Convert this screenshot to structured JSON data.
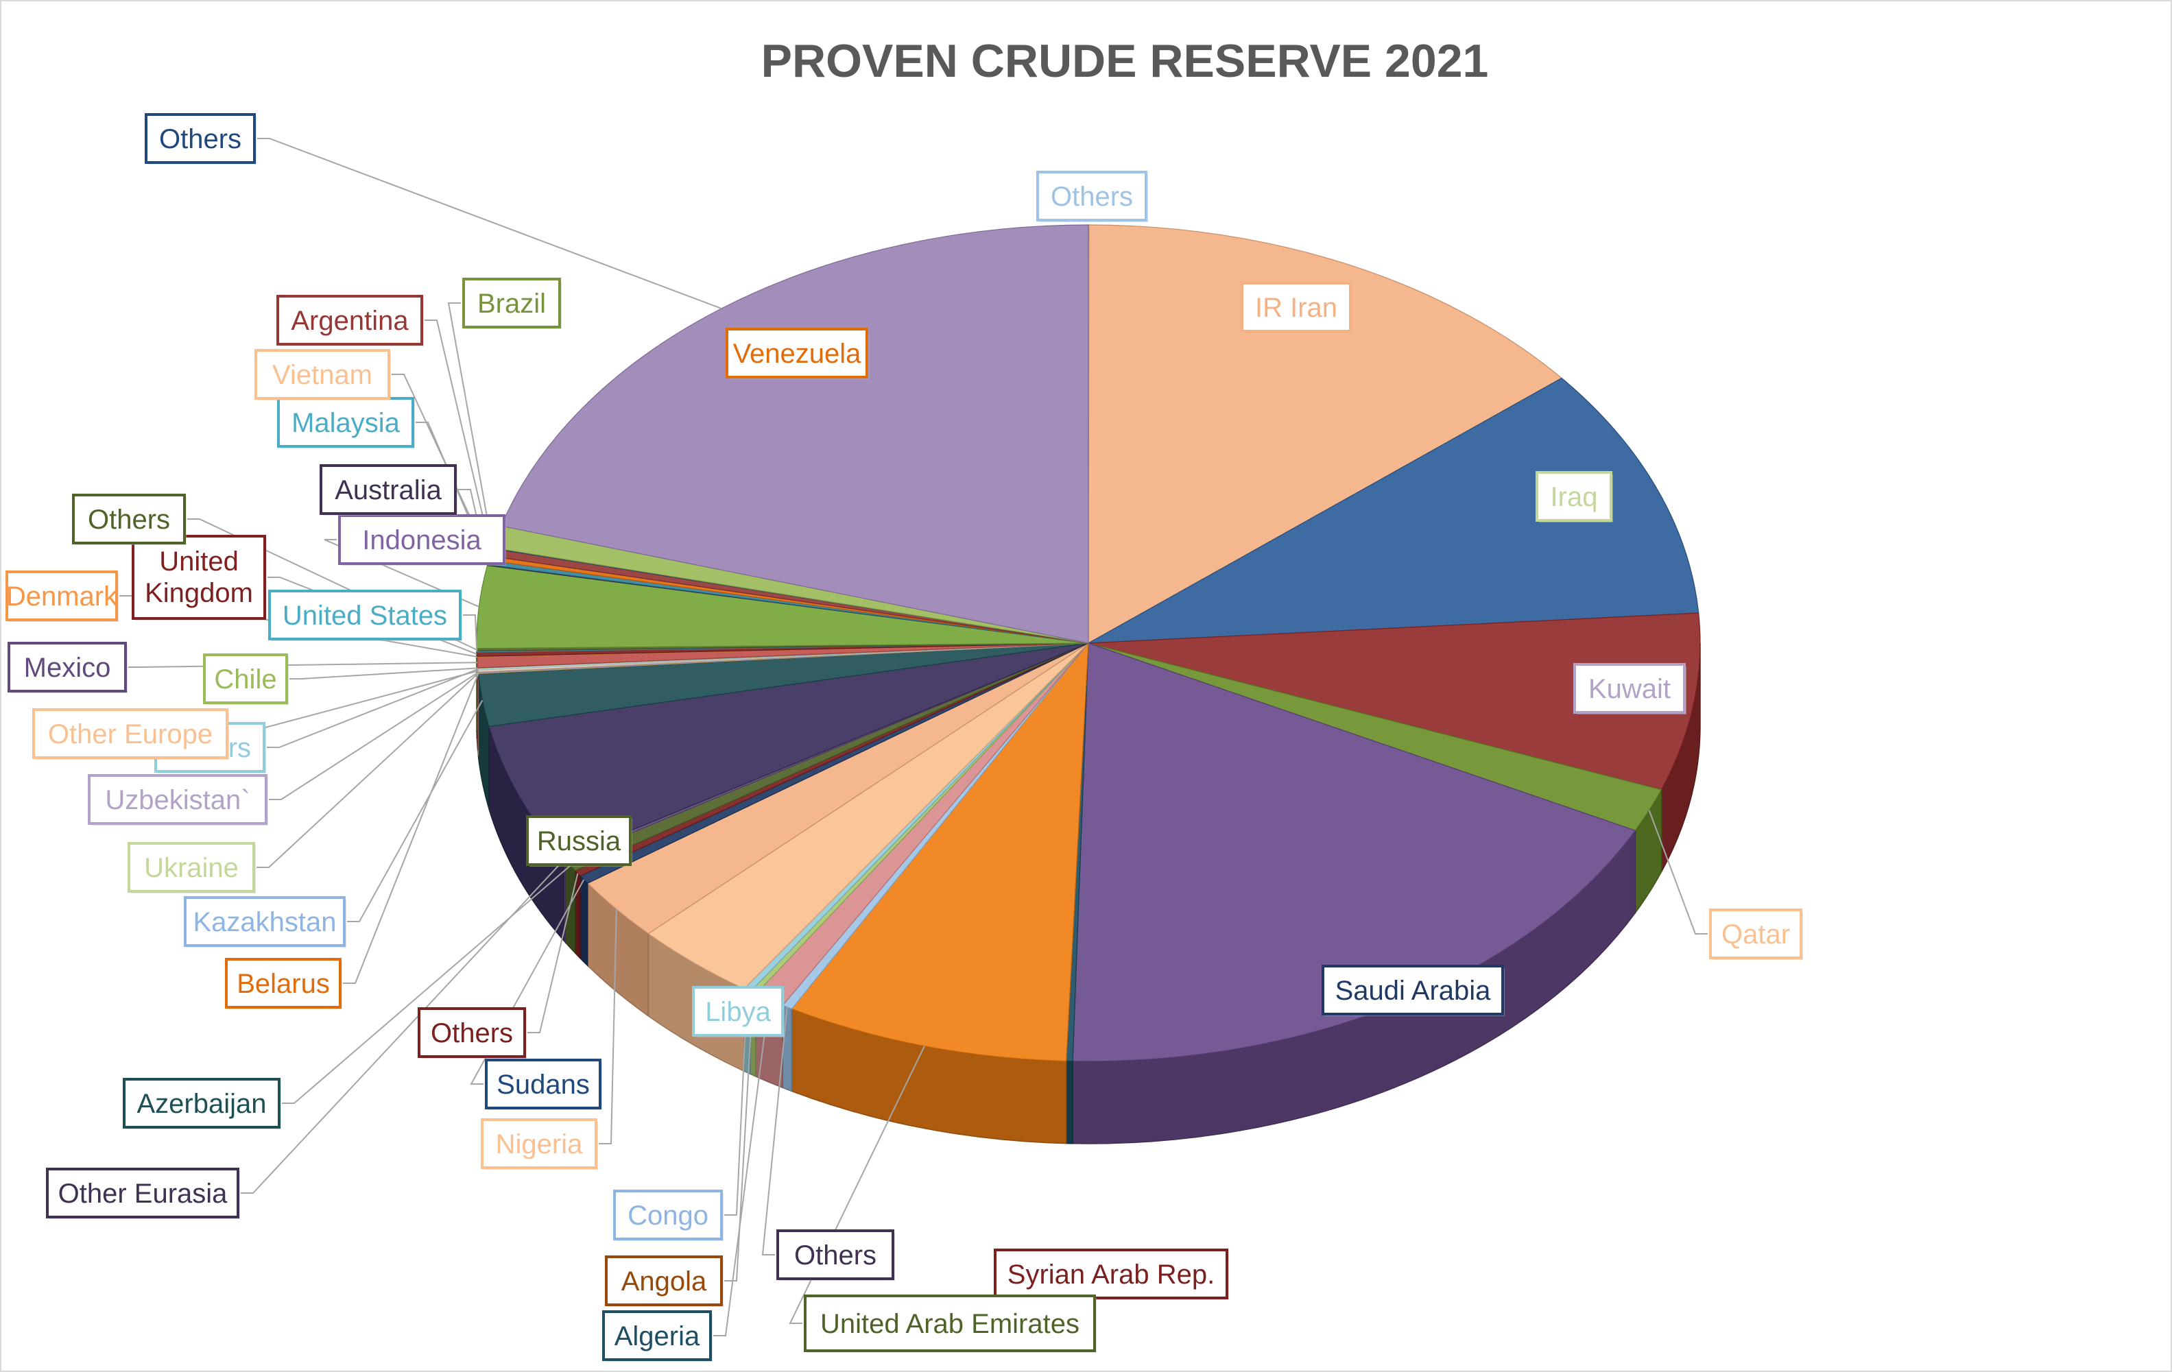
{
  "chart_data": {
    "type": "pie",
    "style": "3d",
    "title": "PROVEN CRUDE RESERVE 2021",
    "legend": "none (data callout labels)",
    "slices": [
      {
        "label": "Others",
        "value": 0.2,
        "color": "#9dc3e6"
      },
      {
        "label": "IR Iran",
        "value": 208.6,
        "color": "#f4b183"
      },
      {
        "label": "Iraq",
        "value": 145.0,
        "color": "#2e5f9a"
      },
      {
        "label": "Kuwait",
        "value": 101.5,
        "color": "#922b2b"
      },
      {
        "label": "Qatar",
        "value": 25.2,
        "color": "#6b8f2a"
      },
      {
        "label": "Saudi Arabia",
        "value": 267.2,
        "color": "#6a4c8c"
      },
      {
        "label": "Syrian Arab Rep.",
        "value": 2.5,
        "color": "#1d4e63"
      },
      {
        "label": "United Arab Emirates",
        "value": 111.0,
        "color": "#f07f13"
      },
      {
        "label": "Others",
        "value": 4.0,
        "color": "#9dc3e6"
      },
      {
        "label": "Algeria",
        "value": 12.2,
        "color": "#d98c8c"
      },
      {
        "label": "Angola",
        "value": 2.5,
        "color": "#a6c76d"
      },
      {
        "label": "Congo",
        "value": 2.9,
        "color": "#92cddc"
      },
      {
        "label": "Libya",
        "value": 48.4,
        "color": "#fac090"
      },
      {
        "label": "Nigeria",
        "value": 36.9,
        "color": "#f4b183"
      },
      {
        "label": "Sudans",
        "value": 5.0,
        "color": "#1f3864"
      },
      {
        "label": "Others",
        "value": 3.5,
        "color": "#7b1f1f"
      },
      {
        "label": "Azerbaijan",
        "value": 7.0,
        "color": "#4f6228"
      },
      {
        "label": "Other Eurasia",
        "value": 1.5,
        "color": "#604a7b"
      },
      {
        "label": "Russia",
        "value": 80.0,
        "color": "#3b2f5c"
      },
      {
        "label": "Kazakhstan",
        "value": 30.0,
        "color": "#1d4f55"
      },
      {
        "label": "Belarus",
        "value": 0.2,
        "color": "#984807"
      },
      {
        "label": "Ukraine",
        "value": 0.4,
        "color": "#c4d79b"
      },
      {
        "label": "Uzbekistan`",
        "value": 0.6,
        "color": "#b3a2c7"
      },
      {
        "label": "Other Europe",
        "value": 1.0,
        "color": "#fcd5b4"
      },
      {
        "label": "Others",
        "value": 1.0,
        "color": "#b7dee8"
      },
      {
        "label": "Chile",
        "value": 0.2,
        "color": "#9bbb59"
      },
      {
        "label": "Mexico",
        "value": 6.1,
        "color": "#c0504d"
      },
      {
        "label": "Denmark",
        "value": 0.4,
        "color": "#f79646"
      },
      {
        "label": "United Kingdom",
        "value": 2.5,
        "color": "#7f1f1f"
      },
      {
        "label": "United States",
        "value": 0.5,
        "color": "#4bacc6"
      },
      {
        "label": "Others",
        "value": 1.5,
        "color": "#4f6228"
      },
      {
        "label": "Indonesia",
        "value": 47.1,
        "color": "#76a638"
      },
      {
        "label": "Australia",
        "value": 0.5,
        "color": "#403152"
      },
      {
        "label": "Malaysia",
        "value": 2.4,
        "color": "#31859c"
      },
      {
        "label": "Vietnam",
        "value": 2.5,
        "color": "#e26b0a"
      },
      {
        "label": "Argentina",
        "value": 4.4,
        "color": "#953735"
      },
      {
        "label": "Brazil",
        "value": 0.4,
        "color": "#1f497d"
      },
      {
        "label": "Venezuela",
        "value": 12.7,
        "color": "#9bbb59"
      },
      {
        "label": "Others",
        "value": 303.8,
        "color": "#9b83b5"
      }
    ]
  },
  "callouts": [
    {
      "slice": 0,
      "text": "Others",
      "color": "#9dc3e6",
      "leader": false
    },
    {
      "slice": 1,
      "text": "IR Iran",
      "color": "#f4b183",
      "leader": false
    },
    {
      "slice": 2,
      "text": "Iraq",
      "color": "#c4d79b",
      "leader": false
    },
    {
      "slice": 3,
      "text": "Kuwait",
      "color": "#b3a2c7",
      "leader": false
    },
    {
      "slice": 4,
      "text": "Qatar",
      "color": "#fac090",
      "leader": true
    },
    {
      "slice": 5,
      "text": "Saudi Arabia",
      "color": "#1f3864",
      "leader": false
    },
    {
      "slice": 6,
      "text": "Syrian Arab Rep.",
      "color": "#7b1f1f",
      "leader": false
    },
    {
      "slice": 7,
      "text": "United Arab Emirates",
      "color": "#4f6228",
      "leader": true
    },
    {
      "slice": 8,
      "text": "Others",
      "color": "#403152",
      "leader": true
    },
    {
      "slice": 9,
      "text": "Algeria",
      "color": "#1d4e63",
      "leader": true
    },
    {
      "slice": 10,
      "text": "Angola",
      "color": "#984807",
      "leader": true
    },
    {
      "slice": 11,
      "text": "Congo",
      "color": "#8eb4e3",
      "leader": true
    },
    {
      "slice": 12,
      "text": "Libya",
      "color": "#92cddc",
      "leader": false
    },
    {
      "slice": 13,
      "text": "Nigeria",
      "color": "#fac090",
      "leader": true
    },
    {
      "slice": 14,
      "text": "Sudans",
      "color": "#1f497d",
      "leader": true
    },
    {
      "slice": 15,
      "text": "Others",
      "color": "#7b1f1f",
      "leader": true
    },
    {
      "slice": 16,
      "text": "Azerbaijan",
      "color": "#1d4f55",
      "leader": true
    },
    {
      "slice": 17,
      "text": "Other Eurasia",
      "color": "#403152",
      "leader": true
    },
    {
      "slice": 18,
      "text": "Russia",
      "color": "#4f6228",
      "leader": false
    },
    {
      "slice": 19,
      "text": "Kazakhstan",
      "color": "#8eb4e3",
      "leader": true
    },
    {
      "slice": 20,
      "text": "Belarus",
      "color": "#e26b0a",
      "leader": true
    },
    {
      "slice": 21,
      "text": "Ukraine",
      "color": "#c4d79b",
      "leader": true
    },
    {
      "slice": 22,
      "text": "Uzbekistan`",
      "color": "#b3a2c7",
      "leader": true
    },
    {
      "slice": 24,
      "text": "Others",
      "color": "#92cddc",
      "leader": true
    },
    {
      "slice": 23,
      "text": "Other Europe",
      "color": "#fac090",
      "leader": true
    },
    {
      "slice": 25,
      "text": "Chile",
      "color": "#9bbb59",
      "leader": true
    },
    {
      "slice": 26,
      "text": "Mexico",
      "color": "#604a7b",
      "leader": true
    },
    {
      "slice": 27,
      "text": "Denmark",
      "color": "#f79646",
      "leader": true
    },
    {
      "slice": 29,
      "text": "United States",
      "color": "#4bacc6",
      "leader": true
    },
    {
      "slice": 28,
      "text": "United Kingdom",
      "color": "#7f1f1f",
      "leader": true
    },
    {
      "slice": 30,
      "text": "Others",
      "color": "#4f6228",
      "leader": true
    },
    {
      "slice": 31,
      "text": "Indonesia",
      "color": "#8064a2",
      "leader": true
    },
    {
      "slice": 32,
      "text": "Australia",
      "color": "#403152",
      "leader": true
    },
    {
      "slice": 33,
      "text": "Malaysia",
      "color": "#4bacc6",
      "leader": true
    },
    {
      "slice": 34,
      "text": "Vietnam",
      "color": "#fac090",
      "leader": true
    },
    {
      "slice": 35,
      "text": "Argentina",
      "color": "#953735",
      "leader": true
    },
    {
      "slice": 36,
      "text": "Brazil",
      "color": "#77933c",
      "leader": true
    },
    {
      "slice": 37,
      "text": "Venezuela",
      "color": "#e26b0a",
      "leader": false
    },
    {
      "slice": 38,
      "text": "Others",
      "color": "#1f497d",
      "leader": true
    }
  ]
}
